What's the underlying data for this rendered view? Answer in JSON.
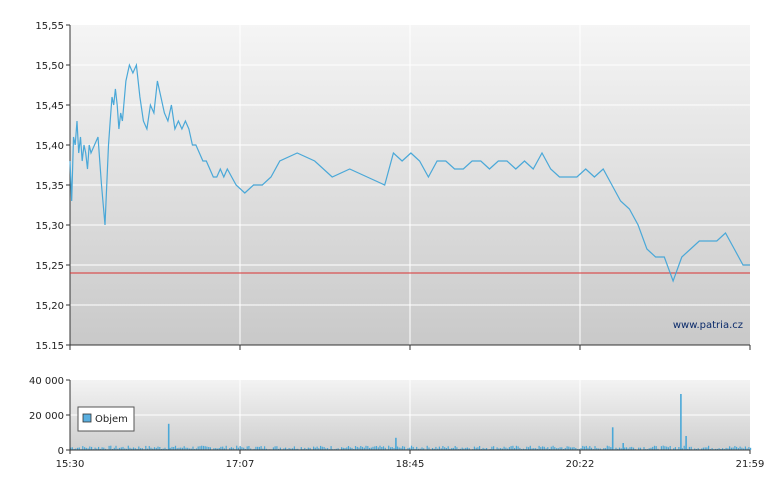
{
  "chart_data": [
    {
      "type": "line",
      "name": "price",
      "ylim": [
        15.15,
        15.55
      ],
      "yticks": [
        "15,55",
        "15,50",
        "15,45",
        "15,40",
        "15,35",
        "15,30",
        "15,25",
        "15,20",
        "15.15"
      ],
      "xticks": [
        "15:30",
        "17:07",
        "18:45",
        "20:22",
        "21:59"
      ],
      "reference_line": 15.24,
      "watermark": "www.patria.cz",
      "grid": true,
      "x_range": [
        0,
        389
      ],
      "series": [
        {
          "x": [
            0,
            1,
            2,
            3,
            4,
            5,
            6,
            7,
            8,
            9,
            10,
            11,
            12,
            14,
            16,
            18,
            20,
            22,
            23,
            24,
            25,
            26,
            27,
            28,
            29,
            30,
            32,
            34,
            36,
            38,
            40,
            42,
            44,
            46,
            48,
            50,
            52,
            54,
            56,
            58,
            60,
            62,
            64,
            66,
            68,
            70,
            72,
            74,
            76,
            78,
            80,
            82,
            84,
            86,
            88,
            90,
            95,
            100,
            105,
            110,
            115,
            120,
            130,
            140,
            150,
            160,
            170,
            180,
            185,
            190,
            195,
            200,
            205,
            210,
            215,
            220,
            225,
            230,
            235,
            240,
            245,
            250,
            255,
            260,
            265,
            270,
            275,
            280,
            285,
            290,
            295,
            300,
            305,
            310,
            315,
            320,
            325,
            330,
            335,
            340,
            345,
            350,
            355,
            360,
            365,
            370,
            375,
            380,
            385,
            389
          ],
          "values": [
            15.38,
            15.33,
            15.41,
            15.4,
            15.43,
            15.39,
            15.41,
            15.38,
            15.4,
            15.39,
            15.37,
            15.4,
            15.39,
            15.4,
            15.41,
            15.35,
            15.3,
            15.4,
            15.43,
            15.46,
            15.45,
            15.47,
            15.45,
            15.42,
            15.44,
            15.43,
            15.48,
            15.5,
            15.49,
            15.5,
            15.46,
            15.43,
            15.42,
            15.45,
            15.44,
            15.48,
            15.46,
            15.44,
            15.43,
            15.45,
            15.42,
            15.43,
            15.42,
            15.43,
            15.42,
            15.4,
            15.4,
            15.39,
            15.38,
            15.38,
            15.37,
            15.36,
            15.36,
            15.37,
            15.36,
            15.37,
            15.35,
            15.34,
            15.35,
            15.35,
            15.36,
            15.38,
            15.39,
            15.38,
            15.36,
            15.37,
            15.36,
            15.35,
            15.39,
            15.38,
            15.39,
            15.38,
            15.36,
            15.38,
            15.38,
            15.37,
            15.37,
            15.38,
            15.38,
            15.37,
            15.38,
            15.38,
            15.37,
            15.38,
            15.37,
            15.39,
            15.37,
            15.36,
            15.36,
            15.36,
            15.37,
            15.36,
            15.37,
            15.35,
            15.33,
            15.32,
            15.3,
            15.27,
            15.26,
            15.26,
            15.23,
            15.26,
            15.27,
            15.28,
            15.28,
            15.28,
            15.29,
            15.27,
            15.25,
            15.25
          ]
        }
      ]
    },
    {
      "type": "bar",
      "ylim": [
        0,
        40000
      ],
      "yticks": [
        "40 000",
        "20 000",
        "0"
      ],
      "xticks": [
        "15:30",
        "17:07",
        "18:45",
        "20:22",
        "21:59"
      ],
      "legend": "Objem",
      "legend_position": "left",
      "spikes": [
        {
          "x": 56,
          "value": 15000
        },
        {
          "x": 186,
          "value": 7000
        },
        {
          "x": 310,
          "value": 13000
        },
        {
          "x": 316,
          "value": 4000
        },
        {
          "x": 349,
          "value": 32000
        },
        {
          "x": 352,
          "value": 8000
        }
      ]
    }
  ]
}
